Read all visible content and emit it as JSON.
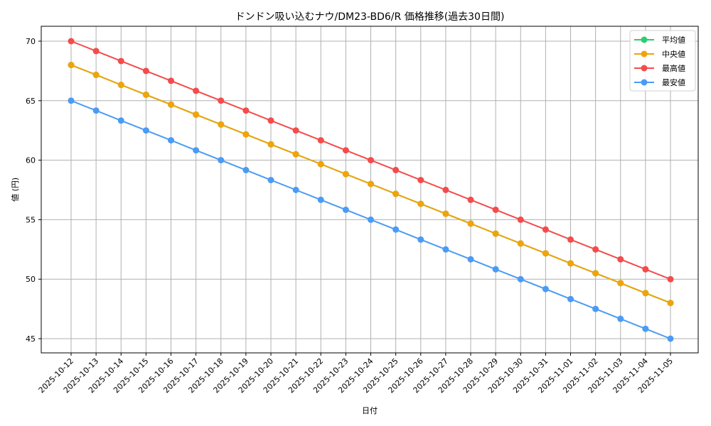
{
  "chart_data": {
    "type": "line",
    "title": "ドンドン吸い込むナウ/DM23-BD6/R 価格推移(過去30日間)",
    "xlabel": "日付",
    "ylabel": "値 (円)",
    "ylim": [
      43.7,
      71.3
    ],
    "yticks": [
      45,
      50,
      55,
      60,
      65,
      70
    ],
    "grid": true,
    "legend_position": "upper right",
    "categories": [
      "2025-10-12",
      "2025-10-13",
      "2025-10-14",
      "2025-10-15",
      "2025-10-16",
      "2025-10-17",
      "2025-10-18",
      "2025-10-19",
      "2025-10-20",
      "2025-10-21",
      "2025-10-22",
      "2025-10-23",
      "2025-10-24",
      "2025-10-25",
      "2025-10-26",
      "2025-10-27",
      "2025-10-28",
      "2025-10-29",
      "2025-10-30",
      "2025-10-31",
      "2025-11-01",
      "2025-11-02",
      "2025-11-03",
      "2025-11-04",
      "2025-11-05"
    ],
    "series": [
      {
        "name": "平均値",
        "color": "#2ecc71",
        "values": [
          68.0,
          67.17,
          66.33,
          65.5,
          64.67,
          63.83,
          63.0,
          62.17,
          61.33,
          60.5,
          59.67,
          58.83,
          58.0,
          57.17,
          56.33,
          55.5,
          54.67,
          53.83,
          53.0,
          52.17,
          51.33,
          50.5,
          49.67,
          48.83,
          48.0
        ]
      },
      {
        "name": "中央値",
        "color": "#f0a30a",
        "values": [
          68.0,
          67.17,
          66.33,
          65.5,
          64.67,
          63.83,
          63.0,
          62.17,
          61.33,
          60.5,
          59.67,
          58.83,
          58.0,
          57.17,
          56.33,
          55.5,
          54.67,
          53.83,
          53.0,
          52.17,
          51.33,
          50.5,
          49.67,
          48.83,
          48.0
        ]
      },
      {
        "name": "最高値",
        "color": "#f44b4b",
        "values": [
          70.0,
          69.17,
          68.33,
          67.5,
          66.67,
          65.83,
          65.0,
          64.17,
          63.33,
          62.5,
          61.67,
          60.83,
          60.0,
          59.17,
          58.33,
          57.5,
          56.67,
          55.83,
          55.0,
          54.17,
          53.33,
          52.5,
          51.67,
          50.83,
          50.0
        ]
      },
      {
        "name": "最安値",
        "color": "#4a9bf5",
        "values": [
          65.0,
          64.17,
          63.33,
          62.5,
          61.67,
          60.83,
          60.0,
          59.17,
          58.33,
          57.5,
          56.67,
          55.83,
          55.0,
          54.17,
          53.33,
          52.5,
          51.67,
          50.83,
          50.0,
          49.17,
          48.33,
          47.5,
          46.67,
          45.83,
          45.0
        ]
      }
    ]
  }
}
